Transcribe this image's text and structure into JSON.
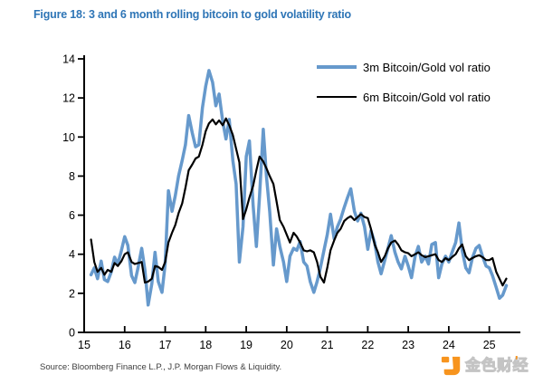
{
  "figure": {
    "title": "Figure 18: 3 and 6 month rolling bitcoin to gold volatility ratio"
  },
  "legend": [
    {
      "label": "3m Bitcoin/Gold vol ratio",
      "color": "#6699cc",
      "thickness": 3.5
    },
    {
      "label": "6m Bitcoin/Gold vol ratio",
      "color": "#000000",
      "thickness": 2.4
    }
  ],
  "source_text": "Source: Bloomberg Finance L.P., J.P. Morgan Flows & Liquidity.",
  "watermark": {
    "text": "金色财经",
    "accent": "'",
    "orange": "#F7941E",
    "gray": "#cccccc"
  },
  "chart_data": {
    "type": "line",
    "title": "3 and 6 month rolling bitcoin to gold volatility ratio",
    "xlabel": "",
    "ylabel": "",
    "xlim": [
      15,
      25.7
    ],
    "ylim": [
      0,
      14
    ],
    "xticks": [
      15,
      16,
      17,
      18,
      19,
      20,
      21,
      22,
      23,
      24,
      25
    ],
    "yticks": [
      0,
      2,
      4,
      6,
      8,
      10,
      12,
      14
    ],
    "grid": false,
    "legend_position": "top-right",
    "axis_color": "#000000",
    "x": [
      15.17,
      15.25,
      15.33,
      15.42,
      15.5,
      15.58,
      15.67,
      15.75,
      15.83,
      15.92,
      16.0,
      16.08,
      16.17,
      16.25,
      16.33,
      16.42,
      16.5,
      16.58,
      16.67,
      16.75,
      16.83,
      16.92,
      17.0,
      17.08,
      17.17,
      17.25,
      17.33,
      17.42,
      17.5,
      17.58,
      17.67,
      17.75,
      17.83,
      17.92,
      18.0,
      18.08,
      18.17,
      18.25,
      18.33,
      18.42,
      18.5,
      18.58,
      18.67,
      18.75,
      18.83,
      18.92,
      19.0,
      19.08,
      19.17,
      19.25,
      19.33,
      19.42,
      19.5,
      19.58,
      19.67,
      19.75,
      19.83,
      19.92,
      20.0,
      20.08,
      20.17,
      20.25,
      20.33,
      20.42,
      20.5,
      20.58,
      20.67,
      20.75,
      20.83,
      20.92,
      21.0,
      21.08,
      21.17,
      21.25,
      21.33,
      21.42,
      21.5,
      21.58,
      21.67,
      21.75,
      21.83,
      21.92,
      22.0,
      22.08,
      22.17,
      22.25,
      22.33,
      22.42,
      22.5,
      22.58,
      22.67,
      22.75,
      22.83,
      22.92,
      23.0,
      23.08,
      23.17,
      23.25,
      23.33,
      23.42,
      23.5,
      23.58,
      23.67,
      23.75,
      23.83,
      23.92,
      24.0,
      24.08,
      24.17,
      24.25,
      24.33,
      24.42,
      24.5,
      24.58,
      24.67,
      24.75,
      24.83,
      24.92,
      25.0,
      25.08,
      25.17,
      25.25,
      25.33,
      25.42
    ],
    "series": [
      {
        "name": "3m Bitcoin/Gold vol ratio",
        "color": "#6699cc",
        "width": 3.5,
        "values": [
          2.95,
          3.3,
          2.75,
          3.65,
          2.7,
          2.6,
          3.1,
          3.85,
          3.5,
          4.2,
          4.9,
          4.45,
          2.9,
          2.55,
          3.3,
          4.3,
          3.2,
          1.4,
          2.5,
          4.1,
          2.6,
          2.05,
          3.5,
          7.25,
          6.2,
          7.0,
          8.0,
          8.8,
          9.6,
          11.1,
          10.2,
          9.5,
          9.6,
          11.5,
          12.6,
          13.4,
          12.8,
          11.6,
          12.2,
          10.8,
          9.9,
          10.9,
          8.8,
          7.6,
          3.6,
          5.4,
          9.0,
          9.8,
          6.5,
          4.4,
          7.0,
          10.4,
          8.0,
          6.2,
          3.45,
          5.3,
          4.4,
          3.6,
          2.6,
          3.9,
          4.3,
          4.2,
          4.65,
          3.6,
          3.4,
          2.6,
          2.05,
          2.6,
          3.3,
          4.2,
          5.0,
          6.05,
          4.8,
          5.4,
          5.8,
          6.4,
          6.9,
          7.35,
          6.2,
          5.7,
          6.1,
          5.4,
          4.25,
          5.2,
          4.6,
          3.6,
          3.0,
          3.7,
          4.3,
          4.95,
          4.1,
          3.6,
          3.25,
          3.9,
          3.4,
          2.8,
          3.9,
          4.4,
          3.6,
          3.9,
          3.5,
          4.5,
          4.6,
          2.8,
          3.5,
          3.9,
          3.6,
          4.1,
          4.6,
          5.6,
          4.2,
          3.3,
          3.05,
          3.8,
          4.3,
          4.45,
          3.9,
          3.4,
          3.3,
          2.9,
          2.3,
          1.75,
          1.9,
          2.4
        ]
      },
      {
        "name": "6m Bitcoin/Gold vol ratio",
        "color": "#000000",
        "width": 2.2,
        "values": [
          4.75,
          3.6,
          3.1,
          3.3,
          2.95,
          3.2,
          3.1,
          3.55,
          3.4,
          3.65,
          4.0,
          4.1,
          3.6,
          3.5,
          3.55,
          3.6,
          2.55,
          2.6,
          2.75,
          3.4,
          3.35,
          3.2,
          3.6,
          4.6,
          5.1,
          5.5,
          6.1,
          6.6,
          7.4,
          8.3,
          8.6,
          8.9,
          9.0,
          9.6,
          10.3,
          10.7,
          10.9,
          10.65,
          10.85,
          10.6,
          10.95,
          10.6,
          10.1,
          9.4,
          8.7,
          5.8,
          6.3,
          6.9,
          7.5,
          8.3,
          9.0,
          8.75,
          8.4,
          8.0,
          7.6,
          6.7,
          5.75,
          5.4,
          5.0,
          4.6,
          5.1,
          4.9,
          4.6,
          4.2,
          4.15,
          4.2,
          4.1,
          3.6,
          2.85,
          2.55,
          3.3,
          4.2,
          4.7,
          5.1,
          5.3,
          5.7,
          5.85,
          5.95,
          5.75,
          5.9,
          6.05,
          5.9,
          5.85,
          5.3,
          4.5,
          4.1,
          3.6,
          3.9,
          4.3,
          4.6,
          4.7,
          4.5,
          4.2,
          4.1,
          4.05,
          3.9,
          4.0,
          4.1,
          3.95,
          3.85,
          3.9,
          3.95,
          4.0,
          3.7,
          3.6,
          3.8,
          3.7,
          3.85,
          4.0,
          4.3,
          4.5,
          3.9,
          3.7,
          3.8,
          3.9,
          3.95,
          3.85,
          3.7,
          3.7,
          3.8,
          3.1,
          2.75,
          2.4,
          2.75
        ]
      }
    ]
  }
}
